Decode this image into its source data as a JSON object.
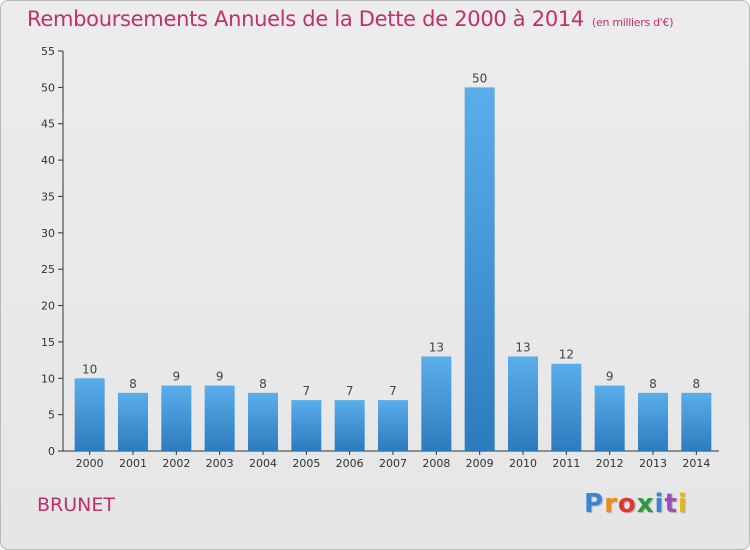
{
  "title": "Remboursements Annuels de la Dette de 2000 à 2014",
  "subtitle": "(en milliers d'€)",
  "commune": "BRUNET",
  "logo": {
    "letters": [
      "P",
      "r",
      "o",
      "x",
      "i",
      "t",
      "i"
    ],
    "colors": [
      "#3a86d4",
      "#f08a1c",
      "#e0372d",
      "#2f9a3c",
      "#3a86d4",
      "#9a50b8",
      "#e8b416"
    ]
  },
  "colors": {
    "bar_top": "#5aaeea",
    "bar_bottom": "#2d7bbf",
    "title": "#c0306b"
  },
  "chart_data": {
    "type": "bar",
    "title": "Remboursements Annuels de la Dette de 2000 à 2014",
    "xlabel": "",
    "ylabel": "",
    "categories": [
      "2000",
      "2001",
      "2002",
      "2003",
      "2004",
      "2005",
      "2006",
      "2007",
      "2008",
      "2009",
      "2010",
      "2011",
      "2012",
      "2013",
      "2014"
    ],
    "values": [
      10,
      8,
      9,
      9,
      8,
      7,
      7,
      7,
      13,
      50,
      13,
      12,
      9,
      8,
      8
    ],
    "ylim": [
      0,
      55
    ],
    "yticks": [
      0,
      5,
      10,
      15,
      20,
      25,
      30,
      35,
      40,
      45,
      50,
      55
    ],
    "grid": false,
    "legend": "none"
  }
}
